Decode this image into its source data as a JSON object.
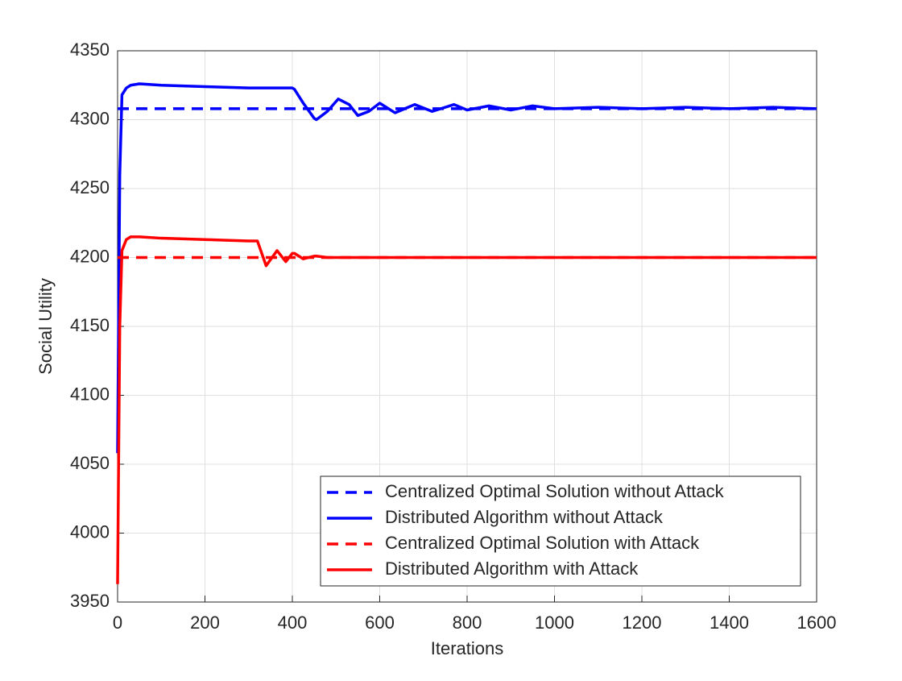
{
  "chart_data": {
    "type": "line",
    "xlabel": "Iterations",
    "ylabel": "Social Utility",
    "x": [
      0,
      5,
      10,
      20,
      30,
      50,
      100,
      200,
      300,
      320,
      340,
      365,
      385,
      400,
      405,
      425,
      450,
      455,
      480,
      505,
      530,
      550,
      575,
      600,
      635,
      680,
      720,
      770,
      800,
      850,
      900,
      950,
      1000,
      1100,
      1200,
      1300,
      1400,
      1500,
      1600
    ],
    "series": [
      {
        "name": "Centralized Optimal Solution without Attack",
        "color": "#0000ff",
        "line_style": "dashed",
        "values": [
          4308,
          4308,
          4308,
          4308,
          4308,
          4308,
          4308,
          4308,
          4308,
          4308,
          4308,
          4308,
          4308,
          4308,
          4308,
          4308,
          4308,
          4308,
          4308,
          4308,
          4308,
          4308,
          4308,
          4308,
          4308,
          4308,
          4308,
          4308,
          4308,
          4308,
          4308,
          4308,
          4308,
          4308,
          4308,
          4308,
          4308,
          4308,
          4308
        ]
      },
      {
        "name": "Distributed Algorithm without Attack",
        "color": "#0000ff",
        "line_style": "solid",
        "values": [
          4058,
          4260,
          4318,
          4323,
          4325,
          4326,
          4325,
          4324,
          4323,
          4323,
          4323,
          4323,
          4323,
          4323,
          4322,
          4312,
          4301,
          4300,
          4306,
          4315,
          4311,
          4303,
          4306,
          4312,
          4305,
          4311,
          4306,
          4311,
          4307,
          4310,
          4307,
          4310,
          4308,
          4309,
          4308,
          4309,
          4308,
          4309,
          4308
        ]
      },
      {
        "name": "Centralized Optimal Solution with Attack",
        "color": "#ff0000",
        "line_style": "dashed",
        "values": [
          4200,
          4200,
          4200,
          4200,
          4200,
          4200,
          4200,
          4200,
          4200,
          4200,
          4200,
          4200,
          4200,
          4200,
          4200,
          4200,
          4200,
          4200,
          4200,
          4200,
          4200,
          4200,
          4200,
          4200,
          4200,
          4200,
          4200,
          4200,
          4200,
          4200,
          4200,
          4200,
          4200,
          4200,
          4200,
          4200,
          4200,
          4200,
          4200
        ]
      },
      {
        "name": "Distributed Algorithm with Attack",
        "color": "#ff0000",
        "line_style": "solid",
        "values": [
          3963,
          4150,
          4205,
          4213,
          4215,
          4215,
          4214,
          4213,
          4212,
          4212,
          4194,
          4205,
          4197,
          4203,
          4203,
          4199,
          4201,
          4201,
          4200,
          4200,
          4200,
          4200,
          4200,
          4200,
          4200,
          4200,
          4200,
          4200,
          4200,
          4200,
          4200,
          4200,
          4200,
          4200,
          4200,
          4200,
          4200,
          4200,
          4200
        ]
      }
    ],
    "xlim": [
      0,
      1600
    ],
    "xticks": [
      0,
      200,
      400,
      600,
      800,
      1000,
      1200,
      1400,
      1600
    ],
    "ylim": [
      3950,
      4350
    ],
    "yticks": [
      3950,
      4000,
      4050,
      4100,
      4150,
      4200,
      4250,
      4300,
      4350
    ],
    "grid": true,
    "legend": "lower right"
  }
}
